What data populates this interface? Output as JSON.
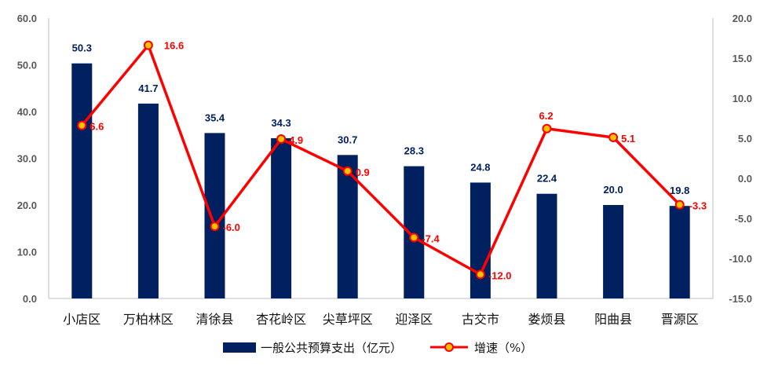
{
  "chart_data": {
    "type": "bar",
    "categories": [
      "小店区",
      "万柏林区",
      "清徐县",
      "杏花岭区",
      "尖草坪区",
      "迎泽区",
      "古交市",
      "娄烦县",
      "阳曲县",
      "晋源区"
    ],
    "series": [
      {
        "name": "一般公共预算支出（亿元）",
        "type": "bar",
        "axis": "left",
        "color": "#002060",
        "values": [
          50.3,
          41.7,
          35.4,
          34.3,
          30.7,
          28.3,
          24.8,
          22.4,
          20.0,
          19.8
        ],
        "labels": [
          "50.3",
          "41.7",
          "35.4",
          "34.3",
          "30.7",
          "28.3",
          "24.8",
          "22.4",
          "20.0",
          "19.8"
        ]
      },
      {
        "name": "增速（%）",
        "type": "line",
        "axis": "right",
        "color": "#FF0000",
        "marker_color": "#FFC000",
        "values": [
          6.6,
          16.6,
          -6.0,
          4.9,
          0.9,
          -7.4,
          -12.0,
          6.2,
          5.1,
          -3.3
        ],
        "labels": [
          "6.6",
          "16.6",
          "-6.0",
          "4.9",
          "0.9",
          "-7.4",
          "-12.0",
          "6.2",
          "5.1",
          "-3.3"
        ]
      }
    ],
    "y_left": {
      "ylim": [
        0,
        60
      ],
      "ticks": [
        "0.0",
        "10.0",
        "20.0",
        "30.0",
        "40.0",
        "50.0",
        "60.0"
      ]
    },
    "y_right": {
      "ylim": [
        -15,
        20
      ],
      "ticks": [
        "-15.0",
        "-10.0",
        "-5.0",
        "0.0",
        "5.0",
        "10.0",
        "15.0",
        "20.0"
      ]
    },
    "grid": false,
    "legend": "bottom"
  }
}
